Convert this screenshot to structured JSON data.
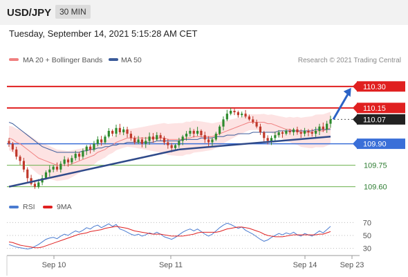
{
  "header": {
    "pair": "USD/JPY",
    "timeframe": "30 MIN"
  },
  "date_line": "Tuesday, September 14, 2021 5:15:28 AM CET",
  "legend": {
    "ma20_label": "MA 20 + Bollinger Bands",
    "ma50_label": "MA 50",
    "credit": "Research © 2021 Trading Central",
    "rsi_label": "RSI",
    "rsi_ma_label": "9MA"
  },
  "colors": {
    "ma20": "#f08080",
    "ma50": "#3b5b9a",
    "band": "#fde3e3",
    "up": "#2e8b2e",
    "down": "#c0392b",
    "resistance": "#e02020",
    "support_current": "#3a6fd8",
    "support": "#6ab04c",
    "rsi": "#4a7bd0",
    "rsi_ma": "#e02020"
  },
  "chart_data": [
    {
      "type": "candlestick",
      "symbol": "USD/JPY",
      "timeframe": "30 MIN",
      "x_ticks": [
        "Sep 10",
        "Sep 11",
        "Sep 14",
        "Sep 23"
      ],
      "ylim": [
        109.55,
        110.42
      ],
      "levels": [
        {
          "value": 110.3,
          "label": "110.30",
          "kind": "resistance"
        },
        {
          "value": 110.15,
          "label": "110.15",
          "kind": "resistance"
        },
        {
          "value": 110.07,
          "label": "110.07",
          "kind": "current"
        },
        {
          "value": 109.9,
          "label": "109.90",
          "kind": "support-current"
        },
        {
          "value": 109.75,
          "label": "109.75",
          "kind": "support"
        },
        {
          "value": 109.6,
          "label": "109.60",
          "kind": "support"
        }
      ],
      "close": [
        109.9,
        109.86,
        109.81,
        109.78,
        109.72,
        109.66,
        109.62,
        109.6,
        109.63,
        109.66,
        109.7,
        109.72,
        109.74,
        109.72,
        109.76,
        109.79,
        109.77,
        109.8,
        109.83,
        109.81,
        109.85,
        109.88,
        109.86,
        109.9,
        109.93,
        109.91,
        109.95,
        109.99,
        109.97,
        110.01,
        109.98,
        110.0,
        109.97,
        109.94,
        109.91,
        109.93,
        109.9,
        109.92,
        109.95,
        109.93,
        109.96,
        109.94,
        109.91,
        109.89,
        109.87,
        109.89,
        109.92,
        109.95,
        109.97,
        109.99,
        109.97,
        109.99,
        109.96,
        109.93,
        109.91,
        109.93,
        109.97,
        110.02,
        110.07,
        110.11,
        110.13,
        110.12,
        110.1,
        110.11,
        110.09,
        110.07,
        110.05,
        110.02,
        109.98,
        109.94,
        109.92,
        109.94,
        109.96,
        109.98,
        109.97,
        109.99,
        109.98,
        110.0,
        109.98,
        109.97,
        109.99,
        109.98,
        109.97,
        109.99,
        110.02,
        110.0,
        110.04,
        110.07
      ],
      "ma20": [
        109.94,
        109.93,
        109.91,
        109.9,
        109.88,
        109.86,
        109.84,
        109.82,
        109.8,
        109.79,
        109.78,
        109.77,
        109.76,
        109.75,
        109.75,
        109.75,
        109.75,
        109.76,
        109.77,
        109.78,
        109.79,
        109.8,
        109.81,
        109.82,
        109.84,
        109.85,
        109.86,
        109.88,
        109.89,
        109.91,
        109.92,
        109.93,
        109.94,
        109.94,
        109.94,
        109.94,
        109.94,
        109.94,
        109.94,
        109.94,
        109.94,
        109.94,
        109.94,
        109.93,
        109.93,
        109.93,
        109.93,
        109.93,
        109.94,
        109.94,
        109.95,
        109.95,
        109.95,
        109.95,
        109.95,
        109.95,
        109.96,
        109.97,
        109.98,
        109.99,
        110.0,
        110.01,
        110.02,
        110.03,
        110.04,
        110.05,
        110.05,
        110.05,
        110.05,
        110.05,
        110.04,
        110.04,
        110.03,
        110.02,
        110.01,
        110.0,
        110.0,
        109.99,
        109.99,
        109.98,
        109.98,
        109.98,
        109.98,
        109.99,
        109.99,
        109.99,
        110.0,
        110.01
      ],
      "ma50": [
        110.05,
        110.04,
        110.02,
        110.0,
        109.98,
        109.96,
        109.94,
        109.92,
        109.9,
        109.88,
        109.87,
        109.86,
        109.85,
        109.84,
        109.84,
        109.84,
        109.84,
        109.84,
        109.84,
        109.84,
        109.85,
        109.85,
        109.86,
        109.86,
        109.87,
        109.87,
        109.88,
        109.88,
        109.89,
        109.89,
        109.9,
        109.9,
        109.91,
        109.91,
        109.91,
        109.91,
        109.91,
        109.91,
        109.91,
        109.91,
        109.92,
        109.92,
        109.92,
        109.92,
        109.92,
        109.92,
        109.92,
        109.93,
        109.93,
        109.93,
        109.93,
        109.93,
        109.94,
        109.94,
        109.94,
        109.94,
        109.95,
        109.95,
        109.95,
        109.96,
        109.96,
        109.96,
        109.97,
        109.97,
        109.97,
        109.97,
        109.98,
        109.98,
        109.98,
        109.98,
        109.98,
        109.98,
        109.98,
        109.99,
        109.99,
        109.99,
        109.99,
        109.99,
        109.99,
        109.99,
        109.99,
        109.99,
        109.99,
        110.0,
        110.0,
        110.0,
        110.0,
        110.0
      ],
      "trendlines": [
        {
          "from": [
            0,
            109.6
          ],
          "to": [
            46,
            109.86
          ]
        },
        {
          "from": [
            46,
            109.86
          ],
          "to": [
            87,
            109.95
          ]
        }
      ],
      "arrow": {
        "from": [
          87,
          110.07
        ],
        "to": [
          92,
          110.29
        ]
      }
    },
    {
      "type": "line",
      "name": "RSI",
      "ylim": [
        20,
        80
      ],
      "y_ticks": [
        "70",
        "50",
        "30"
      ],
      "series": [
        {
          "name": "RSI",
          "values": [
            36,
            34,
            32,
            31,
            30,
            29,
            30,
            33,
            36,
            40,
            44,
            46,
            47,
            45,
            49,
            52,
            50,
            54,
            57,
            55,
            58,
            62,
            60,
            64,
            66,
            62,
            65,
            68,
            64,
            67,
            60,
            58,
            55,
            52,
            50,
            52,
            49,
            51,
            54,
            52,
            55,
            52,
            48,
            46,
            44,
            47,
            51,
            55,
            58,
            60,
            57,
            60,
            56,
            52,
            49,
            52,
            57,
            62,
            66,
            69,
            67,
            64,
            61,
            63,
            58,
            55,
            52,
            48,
            44,
            41,
            43,
            47,
            50,
            53,
            51,
            54,
            52,
            55,
            51,
            49,
            53,
            51,
            49,
            53,
            57,
            54,
            59,
            64
          ]
        },
        {
          "name": "9MA",
          "values": [
            40,
            39,
            37,
            35,
            34,
            33,
            32,
            31,
            31,
            32,
            34,
            36,
            38,
            40,
            42,
            44,
            46,
            48,
            50,
            52,
            53,
            54,
            56,
            57,
            58,
            59,
            61,
            62,
            63,
            64,
            63,
            62,
            61,
            59,
            57,
            56,
            55,
            54,
            53,
            52,
            52,
            52,
            51,
            50,
            49,
            49,
            49,
            49,
            50,
            51,
            52,
            54,
            55,
            55,
            55,
            55,
            55,
            56,
            58,
            60,
            61,
            62,
            63,
            63,
            62,
            61,
            59,
            57,
            55,
            52,
            50,
            49,
            48,
            48,
            48,
            49,
            50,
            51,
            51,
            51,
            51,
            51,
            51,
            51,
            52,
            52,
            54,
            56
          ]
        }
      ]
    }
  ]
}
